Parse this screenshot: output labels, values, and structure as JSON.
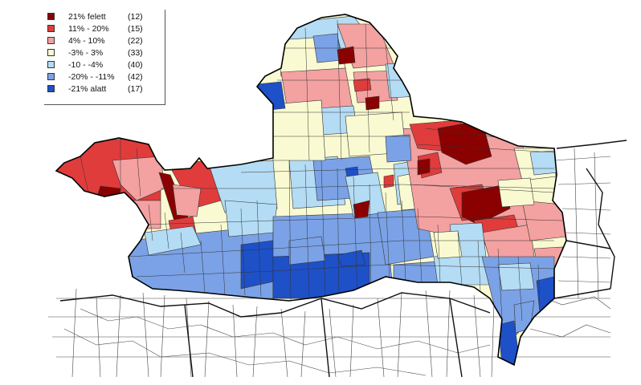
{
  "legend": {
    "items": [
      {
        "label": "21% felett",
        "count": "(12)",
        "color": "#8b0000"
      },
      {
        "label": "11% -  20%",
        "count": "(15)",
        "color": "#e03c3c"
      },
      {
        "label": "4% -  10%",
        "count": "(22)",
        "color": "#f4a1a1"
      },
      {
        "label": "-3% -    3%",
        "count": "(33)",
        "color": "#fafad2"
      },
      {
        "label": "-10   -   -4%",
        "count": "(40)",
        "color": "#b4dcf4"
      },
      {
        "label": "-20% - -11%",
        "count": "(42)",
        "color": "#7ba2e6"
      },
      {
        "label": "-21% alatt",
        "count": "(17)",
        "color": "#1e50c8"
      }
    ]
  },
  "map": {
    "background_color": "#ffffff",
    "outline_color": "#000000"
  }
}
